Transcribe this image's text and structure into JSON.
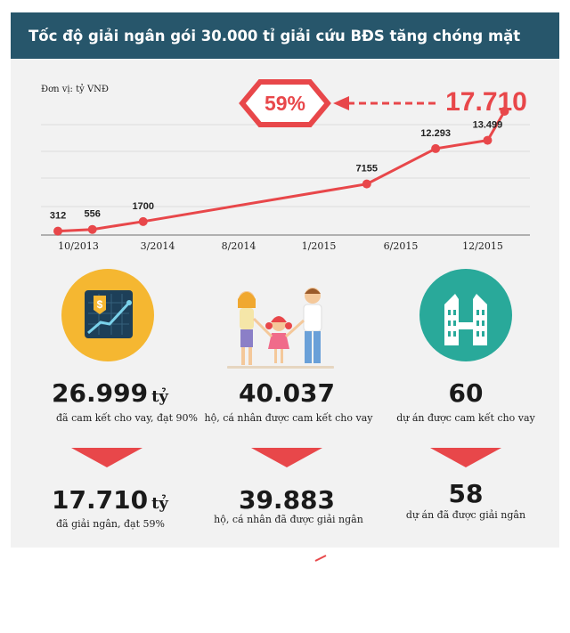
{
  "title": "Tốc độ giải ngân gói 30.000 tỉ giải cứu BĐS tăng chóng mặt",
  "unit_label": "Đơn vị: tỷ VNĐ",
  "badge": "59%",
  "chart_data": {
    "type": "line",
    "x_labels": [
      "10/2013",
      "3/2014",
      "8/2014",
      "1/2015",
      "6/2015",
      "12/2015"
    ],
    "points": [
      {
        "date": "2013-10",
        "value": 312,
        "label": "312"
      },
      {
        "date": "2013-12",
        "value": 556,
        "label": "556"
      },
      {
        "date": "2014-03",
        "value": 1700,
        "label": "1700"
      },
      {
        "date": "2015-04",
        "value": 7155,
        "label": "7155"
      },
      {
        "date": "2015-08",
        "value": 12293,
        "label": "12.293"
      },
      {
        "date": "2015-11",
        "value": 13499,
        "label": "13.499"
      },
      {
        "date": "2015-12",
        "value": 17710,
        "label": "17.710"
      }
    ],
    "line_color": "#e8474a",
    "grid": true
  },
  "stats": [
    {
      "icon": "finance-chart-icon",
      "color": "#1d3f58",
      "committed_value": "26.999",
      "committed_unit": "tỷ",
      "committed_desc": "đã cam kết cho vay, đạt 90%",
      "disbursed_value": "17.710",
      "disbursed_unit": "tỷ",
      "disbursed_desc": "đã giải ngân, đạt 59%"
    },
    {
      "icon": "family-icon",
      "committed_value": "40.037",
      "committed_desc": "hộ, cá nhân được cam kết cho vay",
      "disbursed_value": "39.883",
      "disbursed_desc": "hộ, cá nhân đã được giải ngân"
    },
    {
      "icon": "buildings-icon",
      "color": "#29a99a",
      "committed_value": "60",
      "committed_desc": "dự án được cam kết cho vay",
      "disbursed_value": "58",
      "disbursed_desc": "dự án đã được giải ngân"
    }
  ],
  "colors": {
    "accent": "#e8474a",
    "header": "#27566b",
    "panel": "#f2f2f2",
    "yellow": "#f5b731",
    "teal": "#29a99a"
  }
}
